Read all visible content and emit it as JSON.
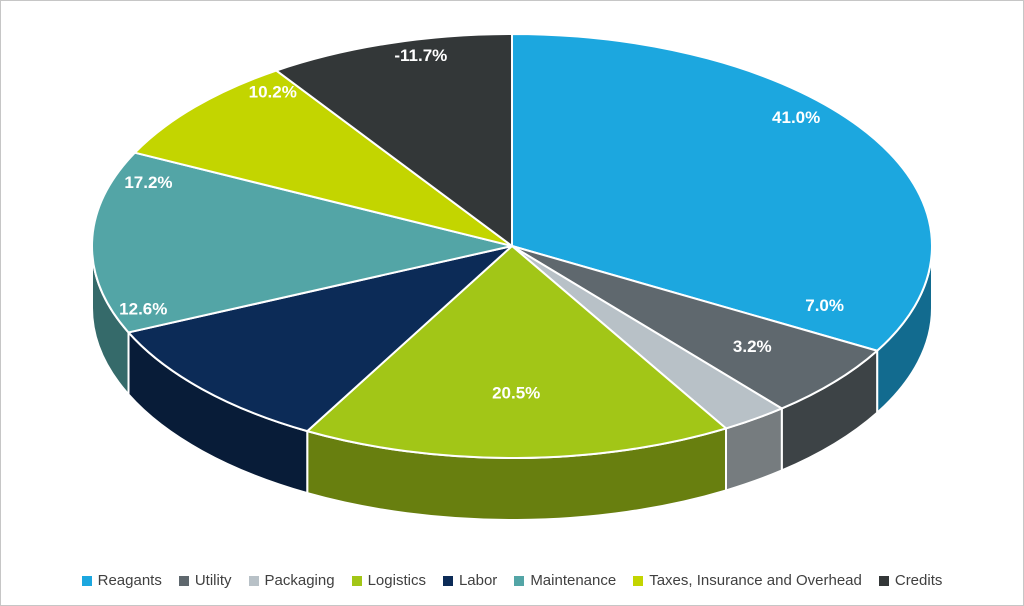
{
  "chart_data": {
    "type": "pie",
    "is_3d": true,
    "title": "",
    "start_angle_deg": 0,
    "direction": "clockwise",
    "legend_position": "bottom",
    "data_label_color": "#ffffff",
    "slices": [
      {
        "label": "Reagants",
        "value": 41.0,
        "display": "41.0%",
        "color": "#1CA7DF"
      },
      {
        "label": "Utility",
        "value": 7.0,
        "display": "7.0%",
        "color": "#5F686E"
      },
      {
        "label": "Packaging",
        "value": 3.2,
        "display": "3.2%",
        "color": "#B8C1C7"
      },
      {
        "label": "Logistics",
        "value": 20.5,
        "display": "20.5%",
        "color": "#A2C617"
      },
      {
        "label": "Labor",
        "value": 12.6,
        "display": "12.6%",
        "color": "#0C2B57"
      },
      {
        "label": "Maintenance",
        "value": 17.2,
        "display": "17.2%",
        "color": "#53A5A6"
      },
      {
        "label": "Taxes, Insurance and Overhead",
        "value": 10.2,
        "display": "10.2%",
        "color": "#C3D500"
      },
      {
        "label": "Credits",
        "value": -11.7,
        "display": "-11.7%",
        "color": "#333738"
      }
    ]
  }
}
